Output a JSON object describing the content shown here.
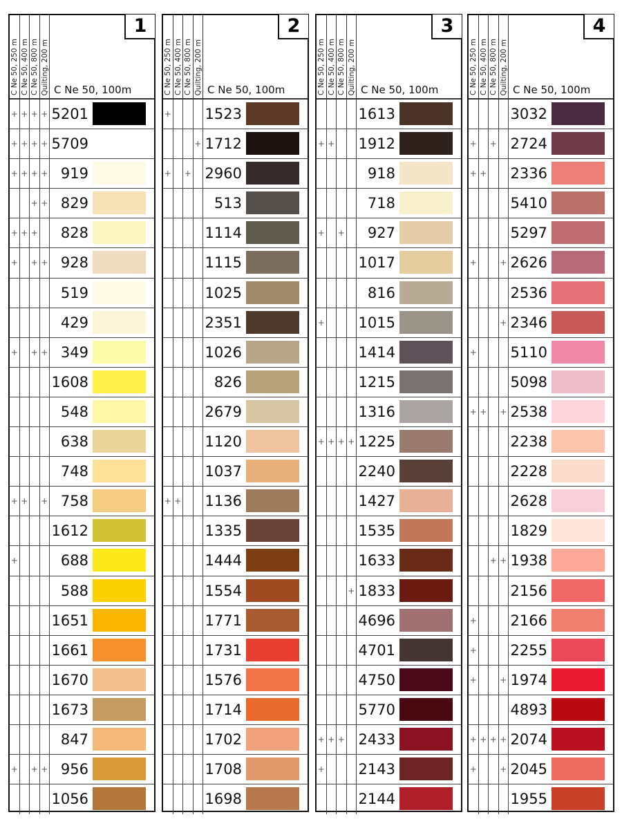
{
  "headers": {
    "col1": "C Ne 50, 250 m",
    "col2": "C Ne 50, 400 m",
    "col3": "C Ne 50, 800 m",
    "col4": "Quilting, 200 m",
    "main": "C Ne 50, 100m"
  },
  "mark_symbol": "+",
  "panels": [
    {
      "number": "1",
      "rows": [
        {
          "code": "5201",
          "marks": "1111",
          "color": "#000000"
        },
        {
          "code": "5709",
          "marks": "1111",
          "color": "#ffffff"
        },
        {
          "code": "919",
          "marks": "1111",
          "color": "#fdfbe6"
        },
        {
          "code": "829",
          "marks": "0011",
          "color": "#f8e2b8"
        },
        {
          "code": "828",
          "marks": "1110",
          "color": "#fdf7c4"
        },
        {
          "code": "928",
          "marks": "1011",
          "color": "#efdcc0"
        },
        {
          "code": "519",
          "marks": "0000",
          "color": "#fdfae6"
        },
        {
          "code": "429",
          "marks": "0000",
          "color": "#fcf6d8"
        },
        {
          "code": "349",
          "marks": "1011",
          "color": "#fdfcaa"
        },
        {
          "code": "1608",
          "marks": "0000",
          "color": "#fff04a"
        },
        {
          "code": "548",
          "marks": "0000",
          "color": "#fff6a6"
        },
        {
          "code": "638",
          "marks": "0000",
          "color": "#ead69a"
        },
        {
          "code": "748",
          "marks": "0000",
          "color": "#fde196"
        },
        {
          "code": "758",
          "marks": "1101",
          "color": "#f6cc82"
        },
        {
          "code": "1612",
          "marks": "0000",
          "color": "#d1c236"
        },
        {
          "code": "688",
          "marks": "1000",
          "color": "#fde91a"
        },
        {
          "code": "588",
          "marks": "0000",
          "color": "#fcd100"
        },
        {
          "code": "1651",
          "marks": "0000",
          "color": "#fcb700"
        },
        {
          "code": "1661",
          "marks": "0000",
          "color": "#f5902a"
        },
        {
          "code": "1670",
          "marks": "0000",
          "color": "#f4c08e"
        },
        {
          "code": "1673",
          "marks": "0000",
          "color": "#c49c62"
        },
        {
          "code": "847",
          "marks": "0000",
          "color": "#f4b878"
        },
        {
          "code": "956",
          "marks": "1011",
          "color": "#d99a3a"
        },
        {
          "code": "1056",
          "marks": "0000",
          "color": "#b2753a"
        }
      ]
    },
    {
      "number": "2",
      "rows": [
        {
          "code": "1523",
          "marks": "1000",
          "color": "#5c3a26"
        },
        {
          "code": "1712",
          "marks": "0001",
          "color": "#1e1210"
        },
        {
          "code": "2960",
          "marks": "1010",
          "color": "#342a2a"
        },
        {
          "code": "513",
          "marks": "0000",
          "color": "#56504c"
        },
        {
          "code": "1114",
          "marks": "0000",
          "color": "#5e5a4e"
        },
        {
          "code": "1115",
          "marks": "0000",
          "color": "#7c6e5e"
        },
        {
          "code": "1025",
          "marks": "0000",
          "color": "#a08a6c"
        },
        {
          "code": "2351",
          "marks": "0000",
          "color": "#4e3a2c"
        },
        {
          "code": "1026",
          "marks": "0000",
          "color": "#b8a68a"
        },
        {
          "code": "826",
          "marks": "0000",
          "color": "#b8a27a"
        },
        {
          "code": "2679",
          "marks": "0000",
          "color": "#d6c6a4"
        },
        {
          "code": "1120",
          "marks": "0000",
          "color": "#eec4a0"
        },
        {
          "code": "1037",
          "marks": "0000",
          "color": "#e8b07a"
        },
        {
          "code": "1136",
          "marks": "1100",
          "color": "#9c7a5c"
        },
        {
          "code": "1335",
          "marks": "0000",
          "color": "#6a4438"
        },
        {
          "code": "1444",
          "marks": "0000",
          "color": "#7e3e14"
        },
        {
          "code": "1554",
          "marks": "0000",
          "color": "#a04a22"
        },
        {
          "code": "1771",
          "marks": "0000",
          "color": "#a85a30"
        },
        {
          "code": "1731",
          "marks": "0000",
          "color": "#e84030"
        },
        {
          "code": "1576",
          "marks": "0000",
          "color": "#f07448"
        },
        {
          "code": "1714",
          "marks": "0000",
          "color": "#e86a2c"
        },
        {
          "code": "1702",
          "marks": "0000",
          "color": "#f0a07a"
        },
        {
          "code": "1708",
          "marks": "0000",
          "color": "#e09a6c"
        },
        {
          "code": "1698",
          "marks": "0000",
          "color": "#b8784e"
        }
      ]
    },
    {
      "number": "3",
      "rows": [
        {
          "code": "1613",
          "marks": "0000",
          "color": "#4a3226"
        },
        {
          "code": "1912",
          "marks": "1100",
          "color": "#2e201a"
        },
        {
          "code": "918",
          "marks": "0000",
          "color": "#f4e4c8"
        },
        {
          "code": "718",
          "marks": "0000",
          "color": "#f8f0cc"
        },
        {
          "code": "927",
          "marks": "1010",
          "color": "#e4cca8"
        },
        {
          "code": "1017",
          "marks": "0000",
          "color": "#e4cc9e"
        },
        {
          "code": "816",
          "marks": "0000",
          "color": "#b8ab96"
        },
        {
          "code": "1015",
          "marks": "1000",
          "color": "#9a9488"
        },
        {
          "code": "1414",
          "marks": "0000",
          "color": "#5e5258"
        },
        {
          "code": "1215",
          "marks": "0000",
          "color": "#7a7270"
        },
        {
          "code": "1316",
          "marks": "0000",
          "color": "#aaa4a2"
        },
        {
          "code": "1225",
          "marks": "1111",
          "color": "#9a7a6e"
        },
        {
          "code": "2240",
          "marks": "0000",
          "color": "#584038"
        },
        {
          "code": "1427",
          "marks": "0000",
          "color": "#e8b096"
        },
        {
          "code": "1535",
          "marks": "0000",
          "color": "#c2765a"
        },
        {
          "code": "1633",
          "marks": "0000",
          "color": "#6a2a18"
        },
        {
          "code": "1833",
          "marks": "0001",
          "color": "#6a1a0e"
        },
        {
          "code": "4696",
          "marks": "0000",
          "color": "#a07072"
        },
        {
          "code": "4701",
          "marks": "0000",
          "color": "#443432"
        },
        {
          "code": "4750",
          "marks": "0000",
          "color": "#4a0a1a"
        },
        {
          "code": "5770",
          "marks": "0000",
          "color": "#4a0810"
        },
        {
          "code": "2433",
          "marks": "1110",
          "color": "#8a1222"
        },
        {
          "code": "2143",
          "marks": "1000",
          "color": "#6e2424"
        },
        {
          "code": "2144",
          "marks": "0000",
          "color": "#b01e2a"
        }
      ]
    },
    {
      "number": "4",
      "rows": [
        {
          "code": "3032",
          "marks": "0000",
          "color": "#4a2a40"
        },
        {
          "code": "2724",
          "marks": "1010",
          "color": "#6e3a48"
        },
        {
          "code": "2336",
          "marks": "1100",
          "color": "#ec8078"
        },
        {
          "code": "5410",
          "marks": "0000",
          "color": "#b87068"
        },
        {
          "code": "5297",
          "marks": "0000",
          "color": "#c06a72"
        },
        {
          "code": "2626",
          "marks": "1001",
          "color": "#b86a7a"
        },
        {
          "code": "2536",
          "marks": "0000",
          "color": "#e47078"
        },
        {
          "code": "2346",
          "marks": "0001",
          "color": "#c85a5a"
        },
        {
          "code": "5110",
          "marks": "1000",
          "color": "#f088a8"
        },
        {
          "code": "5098",
          "marks": "0000",
          "color": "#ecbcc8"
        },
        {
          "code": "2538",
          "marks": "1101",
          "color": "#fcd4dc"
        },
        {
          "code": "2238",
          "marks": "0000",
          "color": "#fcc4ac"
        },
        {
          "code": "2228",
          "marks": "0000",
          "color": "#fcdccc"
        },
        {
          "code": "2628",
          "marks": "0000",
          "color": "#f8d0da"
        },
        {
          "code": "1829",
          "marks": "0000",
          "color": "#fde4d8"
        },
        {
          "code": "1938",
          "marks": "0011",
          "color": "#fca898"
        },
        {
          "code": "2156",
          "marks": "0000",
          "color": "#f06868"
        },
        {
          "code": "2166",
          "marks": "1000",
          "color": "#f08070"
        },
        {
          "code": "2255",
          "marks": "1000",
          "color": "#ec4a58"
        },
        {
          "code": "1974",
          "marks": "1001",
          "color": "#e81a30"
        },
        {
          "code": "4893",
          "marks": "0000",
          "color": "#b80a10"
        },
        {
          "code": "2074",
          "marks": "1111",
          "color": "#b81020"
        },
        {
          "code": "2045",
          "marks": "1001",
          "color": "#ec6a60"
        },
        {
          "code": "1955",
          "marks": "0000",
          "color": "#c84028"
        }
      ]
    }
  ]
}
